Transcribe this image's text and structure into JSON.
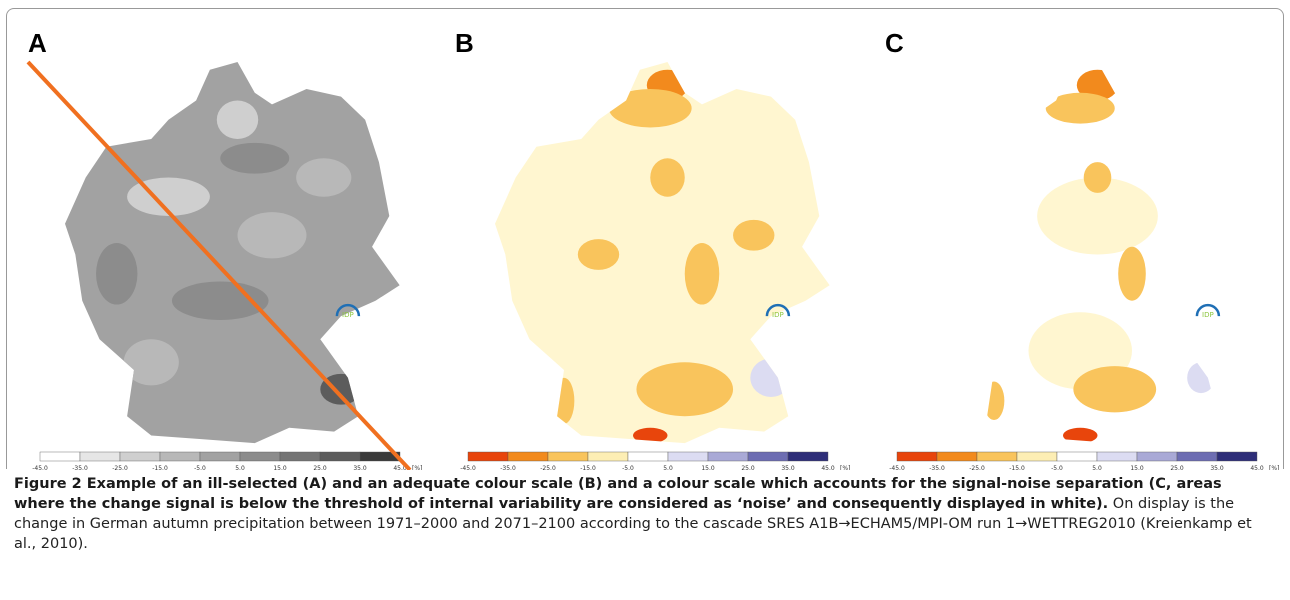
{
  "figure": {
    "panels": [
      {
        "label": "A",
        "logo": "IDP",
        "colors": [
          "#ffffff",
          "#e6e6e6",
          "#cfcfcf",
          "#b8b8b8",
          "#a2a2a2",
          "#8c8c8c",
          "#747474",
          "#5c5c5c",
          "#3a3a3a",
          "#000000"
        ],
        "ticks": [
          "-45.0",
          "-35.0",
          "-25.0",
          "-15.0",
          "-5.0",
          "5.0",
          "15.0",
          "25.0",
          "35.0",
          "45.0"
        ],
        "unit": "[%]"
      },
      {
        "label": "B",
        "logo": "IDP",
        "colors": [
          "#e8450c",
          "#f28a1d",
          "#f9c45c",
          "#fdeeb4",
          "#ffffff",
          "#dcdcf2",
          "#a9a9d6",
          "#6d6db2",
          "#2e2e78"
        ],
        "ticks": [
          "-45.0",
          "-35.0",
          "-25.0",
          "-15.0",
          "-5.0",
          "5.0",
          "15.0",
          "25.0",
          "35.0",
          "45.0"
        ],
        "unit": "[%]"
      },
      {
        "label": "C",
        "logo": "IDP",
        "colors": [
          "#e8450c",
          "#f28a1d",
          "#f9c45c",
          "#fdeeb4",
          "#ffffff",
          "#dcdcf2",
          "#a9a9d6",
          "#6d6db2",
          "#2e2e78"
        ],
        "ticks": [
          "-45.0",
          "-35.0",
          "-25.0",
          "-15.0",
          "-5.0",
          "5.0",
          "15.0",
          "25.0",
          "35.0",
          "45.0"
        ],
        "unit": "[%]"
      }
    ],
    "caption": {
      "bold": "Figure 2 Example of an ill-selected (A) and an adequate colour scale (B) and a colour scale which accounts for the signal-noise separation (C, areas where the change signal is below the threshold of internal variability are considered as ‘noise’ and consequently displayed in white).",
      "text": "On display is the change in German autumn precipitation between 1971–2000 and 2071–2100 according to the cascade SRES A1B→ECHAM5/MPI-OM run 1→WETTREG2010 (Kreienkamp et al., 2010)."
    }
  }
}
